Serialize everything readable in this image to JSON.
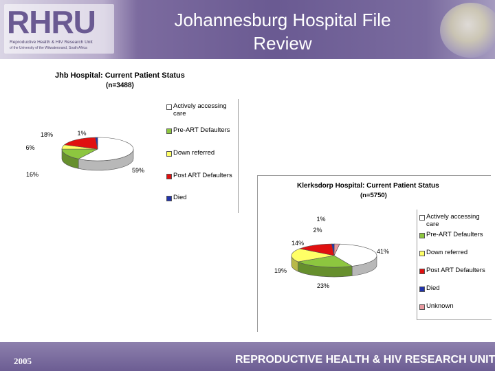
{
  "header": {
    "logo_text": "RHRU",
    "logo_sub1": "Reproductive Health & HIV Research Unit",
    "logo_sub2": "of the University of the Witwatersrand, South Africa",
    "title_line1": "Johannesburg Hospital File",
    "title_line2": "Review"
  },
  "footer": {
    "year": "2005",
    "unit": "REPRODUCTIVE HEALTH & HIV RESEARCH UNIT"
  },
  "colors": {
    "header_purple": "#6a5a92",
    "actively": "#ffffff",
    "pre_art": "#8dc63f",
    "down_referred": "#ffff66",
    "post_art": "#e01010",
    "died": "#2233aa",
    "unknown": "#e89aa0"
  },
  "chart_data": [
    {
      "type": "pie",
      "title": "Jhb Hospital: Current Patient Status",
      "subtitle": "(n=3488)",
      "categories": [
        "Actively accessing care",
        "Pre-ART Defaulters",
        "Down referred",
        "Post ART Defaulters",
        "Died"
      ],
      "values": [
        59,
        16,
        6,
        18,
        1
      ],
      "labels": [
        "59%",
        "16%",
        "6%",
        "18%",
        "1%"
      ],
      "legend_position": "right"
    },
    {
      "type": "pie",
      "title": "Klerksdorp Hospital: Current Patient Status",
      "subtitle": "(n=5750)",
      "categories": [
        "Actively accessing care",
        "Pre-ART Defaulters",
        "Down referred",
        "Post ART Defaulters",
        "Died",
        "Unknown"
      ],
      "values": [
        41,
        23,
        19,
        14,
        1,
        2
      ],
      "labels": [
        "41%",
        "23%",
        "19%",
        "14%",
        "1%",
        "2%"
      ],
      "legend_position": "right"
    }
  ]
}
